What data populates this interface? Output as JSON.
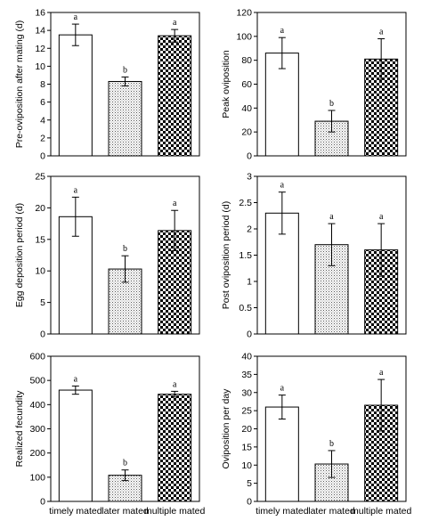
{
  "chart_data": [
    {
      "type": "bar",
      "title": "",
      "ylabel": "Pre-oviposition after mating (d)",
      "categories": [
        "timely mated",
        "later mated",
        "multiple mated"
      ],
      "values": [
        13.5,
        8.3,
        13.4
      ],
      "errors": [
        1.2,
        0.5,
        0.7
      ],
      "significance": [
        "a",
        "b",
        "a"
      ],
      "ylim": [
        0,
        16
      ],
      "yticks": [
        "0",
        "2",
        "4",
        "6",
        "8",
        "10",
        "12",
        "14",
        "16"
      ],
      "show_category_labels": false
    },
    {
      "type": "bar",
      "title": "",
      "ylabel": "Peak oviposition",
      "categories": [
        "timely mated",
        "later mated",
        "multiple mated"
      ],
      "values": [
        86,
        29,
        81
      ],
      "errors": [
        13,
        9,
        17
      ],
      "significance": [
        "a",
        "b",
        "a"
      ],
      "ylim": [
        0,
        120
      ],
      "yticks": [
        "0",
        "20",
        "40",
        "60",
        "80",
        "100",
        "120"
      ],
      "show_category_labels": false
    },
    {
      "type": "bar",
      "title": "",
      "ylabel": "Egg deposition period (d)",
      "categories": [
        "timely mated",
        "later mated",
        "multiple mated"
      ],
      "values": [
        18.6,
        10.3,
        16.4
      ],
      "errors": [
        3.1,
        2.1,
        3.2
      ],
      "significance": [
        "a",
        "b",
        "a"
      ],
      "ylim": [
        0,
        25
      ],
      "yticks": [
        "0",
        "5",
        "10",
        "15",
        "20",
        "25"
      ],
      "show_category_labels": false
    },
    {
      "type": "bar",
      "title": "",
      "ylabel": "Post oviposition period (d)",
      "categories": [
        "timely mated",
        "later mated",
        "multiple mated"
      ],
      "values": [
        2.3,
        1.7,
        1.6
      ],
      "errors": [
        0.4,
        0.4,
        0.5
      ],
      "significance": [
        "a",
        "a",
        "a"
      ],
      "ylim": [
        0,
        3
      ],
      "yticks": [
        "0",
        "0.5",
        "1",
        "1.5",
        "2",
        "2.5",
        "3"
      ],
      "show_category_labels": false
    },
    {
      "type": "bar",
      "title": "",
      "ylabel": "Realized fecundity",
      "categories": [
        "timely mated",
        "later mated",
        "multiple mated"
      ],
      "values": [
        460,
        108,
        443
      ],
      "errors": [
        17,
        22,
        12
      ],
      "significance": [
        "a",
        "b",
        "a"
      ],
      "ylim": [
        0,
        600
      ],
      "yticks": [
        "0",
        "100",
        "200",
        "300",
        "400",
        "500",
        "600"
      ],
      "show_category_labels": true
    },
    {
      "type": "bar",
      "title": "",
      "ylabel": "Oviposition per day",
      "categories": [
        "timely mated",
        "later mated",
        "multiple mated"
      ],
      "values": [
        26,
        10.3,
        26.5
      ],
      "errors": [
        3.3,
        3.7,
        7.1
      ],
      "significance": [
        "a",
        "b",
        "a"
      ],
      "ylim": [
        0,
        40
      ],
      "yticks": [
        "0",
        "5",
        "10",
        "15",
        "20",
        "25",
        "30",
        "35",
        "40"
      ],
      "show_category_labels": true
    }
  ],
  "bar_fills": [
    "white",
    "dotted",
    "checkered"
  ]
}
